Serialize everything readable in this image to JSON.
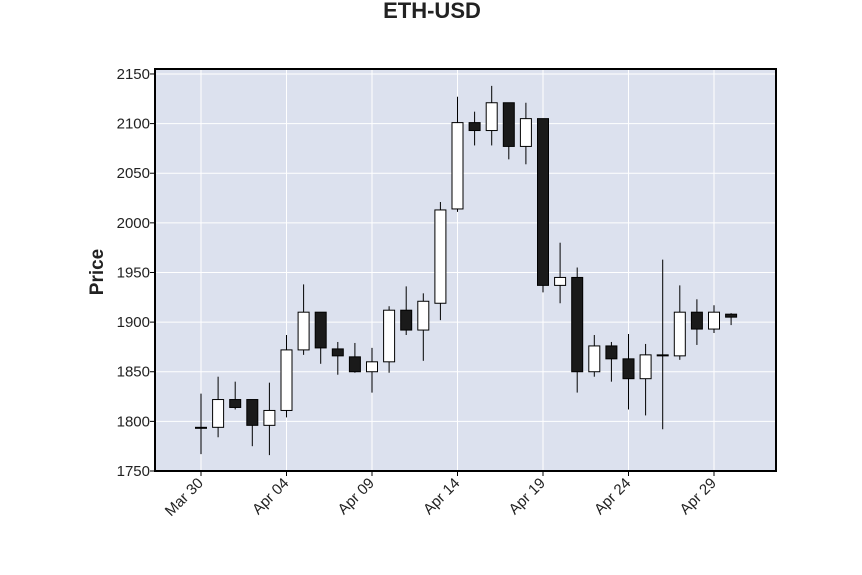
{
  "chart_data": {
    "type": "candlestick",
    "title": "ETH-USD",
    "xlabel": "",
    "ylabel": "Price",
    "ylim": [
      1750,
      2155
    ],
    "yticks": [
      1750,
      1800,
      1850,
      1900,
      1950,
      2000,
      2050,
      2100,
      2150
    ],
    "xticks": [
      {
        "label": "Mar 30",
        "date": "2023-03-30"
      },
      {
        "label": "Apr 04",
        "date": "2023-04-04"
      },
      {
        "label": "Apr 09",
        "date": "2023-04-09"
      },
      {
        "label": "Apr 14",
        "date": "2023-04-14"
      },
      {
        "label": "Apr 19",
        "date": "2023-04-19"
      },
      {
        "label": "Apr 24",
        "date": "2023-04-24"
      },
      {
        "label": "Apr 29",
        "date": "2023-04-29"
      }
    ],
    "grid": true,
    "colors": {
      "plot_background": "#dce1ee",
      "grid": "#ffffff",
      "up_body": "#ffffff",
      "down_body": "#1a1a1a",
      "outline": "#000000"
    },
    "series": [
      {
        "date": "2023-03-30",
        "open": 1793,
        "high": 1828,
        "low": 1767,
        "close": 1794
      },
      {
        "date": "2023-03-31",
        "open": 1794,
        "high": 1845,
        "low": 1784,
        "close": 1822
      },
      {
        "date": "2023-04-01",
        "open": 1822,
        "high": 1840,
        "low": 1812,
        "close": 1814
      },
      {
        "date": "2023-04-02",
        "open": 1822,
        "high": 1822,
        "low": 1775,
        "close": 1796
      },
      {
        "date": "2023-04-03",
        "open": 1796,
        "high": 1839,
        "low": 1766,
        "close": 1811
      },
      {
        "date": "2023-04-04",
        "open": 1811,
        "high": 1887,
        "low": 1804,
        "close": 1872
      },
      {
        "date": "2023-04-05",
        "open": 1872,
        "high": 1938,
        "low": 1867,
        "close": 1910
      },
      {
        "date": "2023-04-06",
        "open": 1910,
        "high": 1910,
        "low": 1858,
        "close": 1874
      },
      {
        "date": "2023-04-07",
        "open": 1873,
        "high": 1880,
        "low": 1847,
        "close": 1866
      },
      {
        "date": "2023-04-08",
        "open": 1865,
        "high": 1879,
        "low": 1849,
        "close": 1850
      },
      {
        "date": "2023-04-09",
        "open": 1850,
        "high": 1874,
        "low": 1829,
        "close": 1860
      },
      {
        "date": "2023-04-10",
        "open": 1860,
        "high": 1916,
        "low": 1849,
        "close": 1912
      },
      {
        "date": "2023-04-11",
        "open": 1912,
        "high": 1936,
        "low": 1887,
        "close": 1892
      },
      {
        "date": "2023-04-12",
        "open": 1892,
        "high": 1929,
        "low": 1861,
        "close": 1921
      },
      {
        "date": "2023-04-13",
        "open": 1919,
        "high": 2021,
        "low": 1902,
        "close": 2013
      },
      {
        "date": "2023-04-14",
        "open": 2014,
        "high": 2127,
        "low": 2011,
        "close": 2101
      },
      {
        "date": "2023-04-15",
        "open": 2101,
        "high": 2112,
        "low": 2078,
        "close": 2093
      },
      {
        "date": "2023-04-16",
        "open": 2093,
        "high": 2138,
        "low": 2078,
        "close": 2121
      },
      {
        "date": "2023-04-17",
        "open": 2121,
        "high": 2121,
        "low": 2064,
        "close": 2077
      },
      {
        "date": "2023-04-18",
        "open": 2077,
        "high": 2121,
        "low": 2059,
        "close": 2105
      },
      {
        "date": "2023-04-19",
        "open": 2105,
        "high": 2105,
        "low": 1930,
        "close": 1937
      },
      {
        "date": "2023-04-20",
        "open": 1937,
        "high": 1980,
        "low": 1919,
        "close": 1945
      },
      {
        "date": "2023-04-21",
        "open": 1945,
        "high": 1955,
        "low": 1829,
        "close": 1850
      },
      {
        "date": "2023-04-22",
        "open": 1850,
        "high": 1887,
        "low": 1845,
        "close": 1876
      },
      {
        "date": "2023-04-23",
        "open": 1876,
        "high": 1880,
        "low": 1840,
        "close": 1863
      },
      {
        "date": "2023-04-24",
        "open": 1863,
        "high": 1888,
        "low": 1812,
        "close": 1843
      },
      {
        "date": "2023-04-25",
        "open": 1843,
        "high": 1878,
        "low": 1806,
        "close": 1867
      },
      {
        "date": "2023-04-26",
        "open": 1867,
        "high": 1963,
        "low": 1792,
        "close": 1866
      },
      {
        "date": "2023-04-27",
        "open": 1866,
        "high": 1937,
        "low": 1862,
        "close": 1910
      },
      {
        "date": "2023-04-28",
        "open": 1910,
        "high": 1923,
        "low": 1877,
        "close": 1893
      },
      {
        "date": "2023-04-29",
        "open": 1893,
        "high": 1917,
        "low": 1889,
        "close": 1910
      },
      {
        "date": "2023-04-30",
        "open": 1908,
        "high": 1909,
        "low": 1897,
        "close": 1905
      }
    ]
  }
}
